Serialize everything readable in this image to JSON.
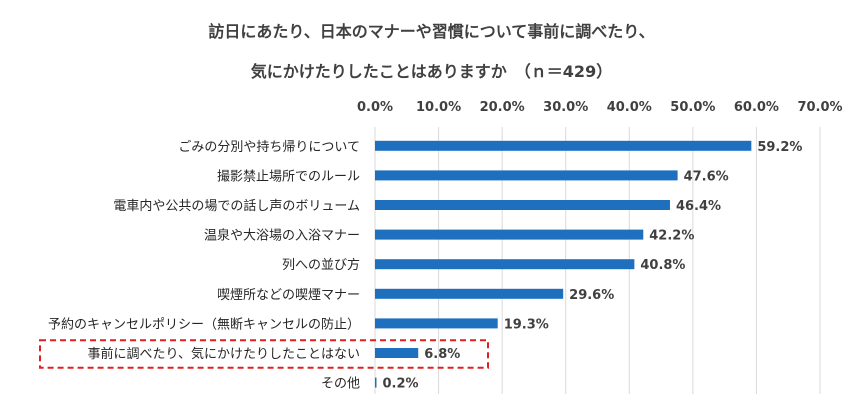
{
  "title_line1": "訪日にあたり、日本のマナーや習慣について事前に調べたり、",
  "title_line2": "気にかけたりしたことはありますか　（ｎ＝429）",
  "chart_data": {
    "type": "bar",
    "orientation": "horizontal",
    "x_ticks": [
      "0.0%",
      "10.0%",
      "20.0%",
      "30.0%",
      "40.0%",
      "50.0%",
      "60.0%",
      "70.0%"
    ],
    "xlim": [
      0,
      70
    ],
    "categories": [
      "ごみの分別や持ち帰りについて",
      "撮影禁止場所でのルール",
      "電車内や公共の場での話し声のボリューム",
      "温泉や大浴場の入浴マナー",
      "列への並び方",
      "喫煙所などの喫煙マナー",
      "予約のキャンセルポリシー（無断キャンセルの防止）",
      "事前に調べたり、気にかけたりしたことはない",
      "その他"
    ],
    "values": [
      59.2,
      47.6,
      46.4,
      42.2,
      40.8,
      29.6,
      19.3,
      6.8,
      0.2
    ],
    "value_labels": [
      "59.2%",
      "47.6%",
      "46.4%",
      "42.2%",
      "40.8%",
      "29.6%",
      "19.3%",
      "6.8%",
      "0.2%"
    ],
    "highlighted_category_index": 7,
    "bar_color": "#1f6fbf",
    "highlight_color": "#e02020",
    "grid": true,
    "axis_position": "top"
  }
}
